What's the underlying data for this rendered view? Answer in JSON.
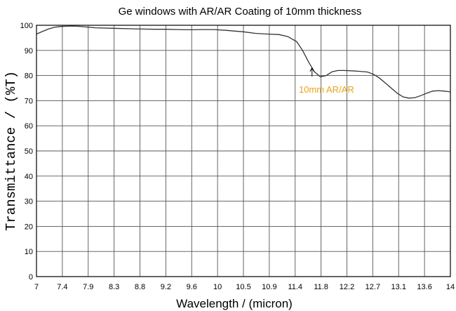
{
  "chart_data": {
    "type": "line",
    "title": "Ge windows with AR/AR Coating of 10mm thickness",
    "xlabel": "Wavelength / (micron)",
    "ylabel": "Transmittance / (%T)",
    "ylim": [
      0,
      100
    ],
    "y_ticks": [
      "0",
      "10",
      "20",
      "30",
      "40",
      "50",
      "60",
      "70",
      "80",
      "90",
      "100"
    ],
    "x_ticks": [
      "7",
      "7.4",
      "7.9",
      "8.3",
      "8.8",
      "9.2",
      "9.6",
      "10",
      "10.5",
      "10.9",
      "11.4",
      "11.8",
      "12.2",
      "12.7",
      "13.1",
      "13.6",
      "14"
    ],
    "grid": true,
    "line_color": "#333333",
    "annotation": {
      "text": "10mm AR/AR",
      "color": "#e8a317",
      "x": 11.66,
      "y": 83
    },
    "series": [
      {
        "x": [
          7.0,
          7.1,
          7.2,
          7.3,
          7.4,
          7.5,
          7.6,
          7.7,
          7.8,
          7.9,
          8.0,
          8.3,
          8.6,
          8.8,
          9.0,
          9.2,
          9.4,
          9.6,
          9.8,
          10.0,
          10.2,
          10.5,
          10.7,
          10.9,
          11.1,
          11.25,
          11.4,
          11.5,
          11.6,
          11.7,
          11.8,
          11.9,
          12.0,
          12.1,
          12.2,
          12.4,
          12.6,
          12.7,
          12.8,
          12.9,
          13.0,
          13.1,
          13.2,
          13.3,
          13.4,
          13.5,
          13.6,
          13.7,
          13.8,
          13.9,
          14.0
        ],
        "y": [
          96.5,
          97.5,
          98.5,
          99.2,
          99.5,
          99.6,
          99.7,
          99.6,
          99.4,
          99.2,
          99.0,
          98.8,
          98.6,
          98.5,
          98.4,
          98.4,
          98.3,
          98.2,
          98.3,
          98.3,
          98.0,
          97.4,
          96.8,
          96.5,
          96.3,
          95.5,
          93.5,
          90.0,
          85.5,
          81.5,
          79.5,
          80.0,
          81.5,
          82.0,
          82.0,
          81.8,
          81.4,
          80.5,
          79.0,
          77.0,
          75.0,
          73.0,
          71.5,
          71.0,
          71.2,
          72.0,
          73.0,
          73.8,
          74.0,
          73.8,
          73.5
        ]
      }
    ]
  }
}
